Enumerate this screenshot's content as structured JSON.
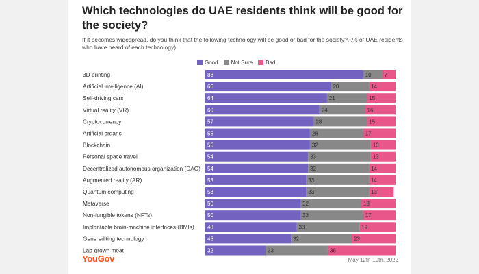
{
  "chart_data": {
    "type": "bar",
    "stacked": true,
    "orientation": "horizontal",
    "title": "Which technologies do UAE residents think will be good for the society?",
    "subtitle": "If it becomes widespread, do you think that the following technology will be good or bad for the society?...% of UAE residents who have heard of each technology)",
    "legend_position": "top",
    "grid": false,
    "categories": [
      "3D printing",
      "Artificial intelligence (AI)",
      "Self-driving cars",
      "Virtual reality (VR)",
      "Cryptocurrency",
      "Artificial organs",
      "Blockchain",
      "Personal space travel",
      "Decentralized autonomous organization (DAO)",
      "Augmented reality (AR)",
      "Quantum computing",
      "Metaverse",
      "Non-fungible tokens (NFTs)",
      "Implantable brain-machine interfaces (BMIs)",
      "Gene editing technology",
      "Lab-grown meat"
    ],
    "series": [
      {
        "name": "Good",
        "color": "#7462c0",
        "label_color": "#ffffff",
        "values": [
          83,
          66,
          64,
          60,
          57,
          55,
          55,
          54,
          54,
          53,
          53,
          50,
          50,
          48,
          45,
          32
        ]
      },
      {
        "name": "Not Sure",
        "color": "#888888",
        "label_color": "#333333",
        "values": [
          10,
          20,
          21,
          24,
          28,
          28,
          32,
          33,
          32,
          33,
          33,
          32,
          33,
          33,
          32,
          33
        ]
      },
      {
        "name": "Bad",
        "color": "#e8568a",
        "label_color": "#333333",
        "values": [
          7,
          14,
          15,
          16,
          15,
          17,
          13,
          13,
          14,
          14,
          13,
          18,
          17,
          19,
          23,
          36
        ]
      }
    ]
  },
  "footer": {
    "brand": "YouGov",
    "date": "May 12th-19th, 2022"
  }
}
